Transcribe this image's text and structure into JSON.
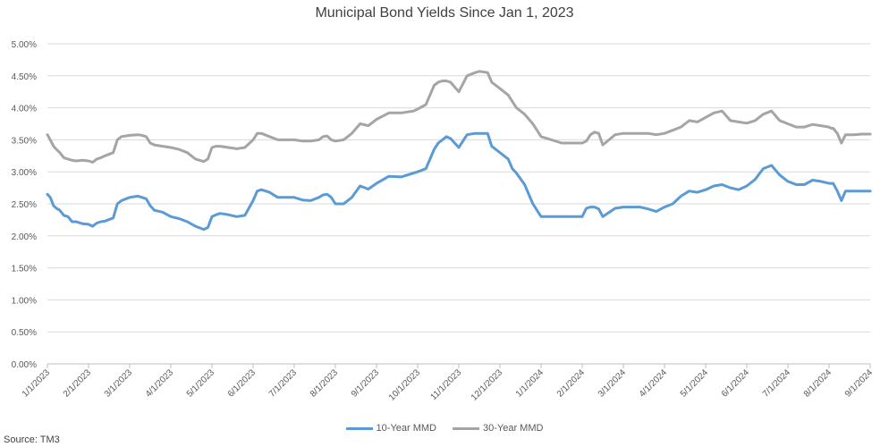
{
  "chart_data": {
    "type": "line",
    "title": "Municipal Bond Yields Since Jan 1, 2023",
    "source": "Source: TM3",
    "xlabel": "",
    "ylabel": "",
    "ylim": [
      0,
      5
    ],
    "y_ticks": [
      0,
      0.5,
      1,
      1.5,
      2,
      2.5,
      3,
      3.5,
      4,
      4.5,
      5
    ],
    "y_tick_labels": [
      "0.00%",
      "0.50%",
      "1.00%",
      "1.50%",
      "2.00%",
      "2.50%",
      "3.00%",
      "3.50%",
      "4.00%",
      "4.50%",
      "5.00%"
    ],
    "x_ticks": [
      0,
      1,
      2,
      3,
      4,
      5,
      6,
      7,
      8,
      9,
      10,
      11,
      12,
      13,
      14,
      15,
      16,
      17,
      18,
      19,
      20
    ],
    "x_tick_labels": [
      "1/1/2023",
      "2/1/2023",
      "3/1/2023",
      "4/1/2023",
      "5/1/2023",
      "6/1/2023",
      "7/1/2023",
      "8/1/2023",
      "9/1/2023",
      "10/1/2023",
      "11/1/2023",
      "12/1/2023",
      "1/1/2024",
      "2/1/2024",
      "3/1/2024",
      "4/1/2024",
      "5/1/2024",
      "6/1/2024",
      "7/1/2024",
      "8/1/2024",
      "9/1/2024"
    ],
    "x_unit": "months since 1/1/2023",
    "grid": true,
    "legend_position": "bottom-center",
    "series": [
      {
        "name": "10-Year MMD",
        "color": "#5b9bd5",
        "x": [
          0,
          0.07,
          0.15,
          0.22,
          0.3,
          0.4,
          0.5,
          0.6,
          0.7,
          0.85,
          1.0,
          1.1,
          1.2,
          1.3,
          1.4,
          1.6,
          1.7,
          1.8,
          2.0,
          2.2,
          2.3,
          2.4,
          2.5,
          2.6,
          2.8,
          3.0,
          3.2,
          3.4,
          3.6,
          3.8,
          3.9,
          4.0,
          4.1,
          4.2,
          4.4,
          4.6,
          4.8,
          5.0,
          5.1,
          5.2,
          5.4,
          5.6,
          5.8,
          6.0,
          6.2,
          6.4,
          6.6,
          6.7,
          6.8,
          6.9,
          7.0,
          7.2,
          7.3,
          7.4,
          7.6,
          7.8,
          8.0,
          8.3,
          8.6,
          8.9,
          9.0,
          9.2,
          9.3,
          9.4,
          9.5,
          9.6,
          9.7,
          9.8,
          10.0,
          10.2,
          10.4,
          10.5,
          10.7,
          10.8,
          11.0,
          11.2,
          11.3,
          11.4,
          11.6,
          11.8,
          12.0,
          12.5,
          13.0,
          13.1,
          13.2,
          13.3,
          13.4,
          13.5,
          13.8,
          14.0,
          14.2,
          14.4,
          14.6,
          14.8,
          15.0,
          15.2,
          15.4,
          15.6,
          15.8,
          16.0,
          16.2,
          16.4,
          16.6,
          16.8,
          17.0,
          17.2,
          17.4,
          17.6,
          17.8,
          18.0,
          18.2,
          18.4,
          18.6,
          18.8,
          19.0,
          19.05,
          19.1,
          19.2,
          19.3,
          19.4,
          19.6,
          19.8,
          20.0
        ],
        "values": [
          2.65,
          2.6,
          2.47,
          2.43,
          2.4,
          2.32,
          2.3,
          2.22,
          2.22,
          2.19,
          2.18,
          2.15,
          2.2,
          2.22,
          2.23,
          2.28,
          2.5,
          2.55,
          2.6,
          2.62,
          2.6,
          2.58,
          2.47,
          2.4,
          2.37,
          2.3,
          2.27,
          2.22,
          2.15,
          2.1,
          2.13,
          2.3,
          2.33,
          2.35,
          2.33,
          2.3,
          2.32,
          2.55,
          2.7,
          2.72,
          2.68,
          2.6,
          2.6,
          2.6,
          2.56,
          2.55,
          2.6,
          2.64,
          2.65,
          2.6,
          2.5,
          2.5,
          2.55,
          2.6,
          2.78,
          2.73,
          2.82,
          2.93,
          2.92,
          2.98,
          3.0,
          3.05,
          3.2,
          3.35,
          3.45,
          3.5,
          3.55,
          3.52,
          3.38,
          3.58,
          3.6,
          3.6,
          3.6,
          3.4,
          3.3,
          3.2,
          3.05,
          2.98,
          2.8,
          2.5,
          2.3,
          2.3,
          2.3,
          2.43,
          2.45,
          2.45,
          2.42,
          2.3,
          2.43,
          2.45,
          2.45,
          2.45,
          2.42,
          2.38,
          2.45,
          2.5,
          2.62,
          2.7,
          2.68,
          2.72,
          2.78,
          2.8,
          2.75,
          2.72,
          2.78,
          2.88,
          3.05,
          3.1,
          2.95,
          2.85,
          2.8,
          2.8,
          2.87,
          2.85,
          2.82,
          2.82,
          2.82,
          2.7,
          2.55,
          2.7,
          2.7,
          2.7,
          2.7
        ]
      },
      {
        "name": "30-Year MMD",
        "color": "#a5a5a5",
        "x": [
          0,
          0.07,
          0.15,
          0.22,
          0.3,
          0.4,
          0.5,
          0.6,
          0.7,
          0.85,
          1.0,
          1.1,
          1.2,
          1.3,
          1.4,
          1.6,
          1.7,
          1.8,
          2.0,
          2.2,
          2.3,
          2.4,
          2.5,
          2.6,
          2.8,
          3.0,
          3.2,
          3.4,
          3.6,
          3.8,
          3.9,
          4.0,
          4.1,
          4.2,
          4.4,
          4.6,
          4.8,
          5.0,
          5.1,
          5.2,
          5.4,
          5.6,
          5.8,
          6.0,
          6.2,
          6.4,
          6.6,
          6.7,
          6.8,
          6.9,
          7.0,
          7.2,
          7.3,
          7.4,
          7.6,
          7.8,
          8.0,
          8.3,
          8.6,
          8.9,
          9.0,
          9.2,
          9.3,
          9.4,
          9.5,
          9.6,
          9.7,
          9.8,
          10.0,
          10.2,
          10.4,
          10.5,
          10.7,
          10.8,
          11.0,
          11.2,
          11.3,
          11.4,
          11.6,
          11.8,
          12.0,
          12.5,
          13.0,
          13.1,
          13.2,
          13.3,
          13.4,
          13.5,
          13.8,
          14.0,
          14.2,
          14.4,
          14.6,
          14.8,
          15.0,
          15.2,
          15.4,
          15.6,
          15.8,
          16.0,
          16.2,
          16.4,
          16.6,
          16.8,
          17.0,
          17.2,
          17.4,
          17.6,
          17.8,
          18.0,
          18.2,
          18.4,
          18.6,
          18.8,
          19.0,
          19.05,
          19.1,
          19.2,
          19.3,
          19.4,
          19.6,
          19.8,
          20.0
        ],
        "values": [
          3.58,
          3.5,
          3.4,
          3.35,
          3.3,
          3.22,
          3.2,
          3.18,
          3.17,
          3.18,
          3.17,
          3.15,
          3.2,
          3.22,
          3.25,
          3.3,
          3.5,
          3.55,
          3.57,
          3.58,
          3.57,
          3.55,
          3.45,
          3.42,
          3.4,
          3.38,
          3.35,
          3.3,
          3.2,
          3.16,
          3.2,
          3.38,
          3.4,
          3.4,
          3.38,
          3.36,
          3.38,
          3.5,
          3.6,
          3.6,
          3.55,
          3.5,
          3.5,
          3.5,
          3.48,
          3.48,
          3.5,
          3.55,
          3.56,
          3.5,
          3.48,
          3.5,
          3.55,
          3.6,
          3.75,
          3.72,
          3.82,
          3.92,
          3.92,
          3.95,
          3.98,
          4.05,
          4.2,
          4.35,
          4.4,
          4.42,
          4.42,
          4.4,
          4.25,
          4.5,
          4.55,
          4.57,
          4.55,
          4.4,
          4.3,
          4.2,
          4.1,
          4.0,
          3.9,
          3.75,
          3.55,
          3.45,
          3.45,
          3.48,
          3.58,
          3.62,
          3.6,
          3.42,
          3.58,
          3.6,
          3.6,
          3.6,
          3.6,
          3.58,
          3.6,
          3.65,
          3.7,
          3.8,
          3.78,
          3.85,
          3.92,
          3.95,
          3.8,
          3.78,
          3.76,
          3.8,
          3.9,
          3.95,
          3.8,
          3.75,
          3.7,
          3.7,
          3.74,
          3.72,
          3.7,
          3.68,
          3.68,
          3.6,
          3.45,
          3.58,
          3.58,
          3.59,
          3.59
        ]
      }
    ]
  }
}
